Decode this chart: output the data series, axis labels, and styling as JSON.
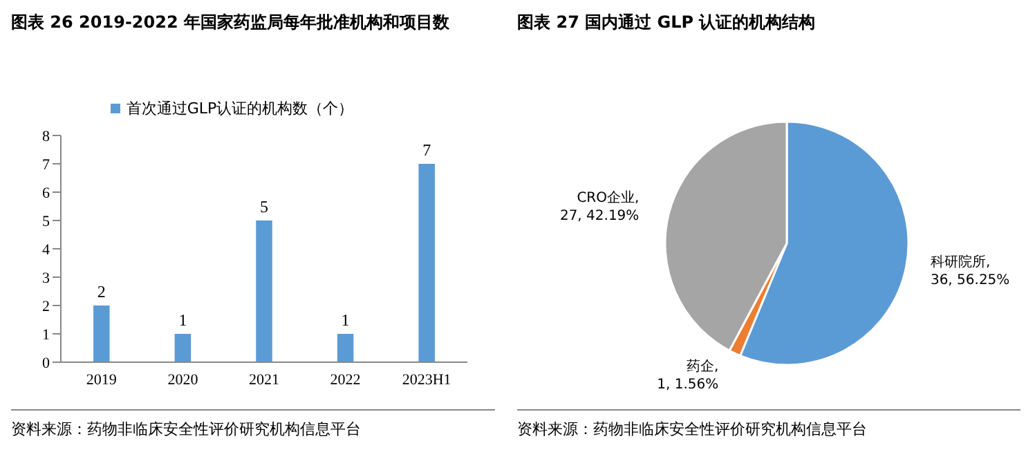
{
  "chart_data": [
    {
      "type": "bar",
      "title": "图表 26 2019-2022 年国家药监局每年批准机构和项目数",
      "categories": [
        "2019",
        "2020",
        "2021",
        "2022",
        "2023H1"
      ],
      "series": [
        {
          "name": "首次通过GLP认证的机构数（个）",
          "color": "#5b9bd5",
          "values": [
            2,
            1,
            5,
            1,
            7
          ]
        }
      ],
      "ylim": [
        0,
        8
      ],
      "yticks": [
        0,
        1,
        2,
        3,
        4,
        5,
        6,
        7,
        8
      ],
      "data_labels": true,
      "legend": "top",
      "annotations": [
        "资料来源：药物非临床安全性评价研究机构信息平台"
      ]
    },
    {
      "type": "pie",
      "title": "图表 27 国内通过 GLP 认证的机构结构",
      "categories": [
        "科研院所",
        "药企",
        "CRO企业"
      ],
      "values": [
        36,
        1,
        27
      ],
      "colors": [
        "#5b9bd5",
        "#ed7d31",
        "#a5a5a5"
      ],
      "value_labels": [
        ", 36, 56.25%",
        ", 1, 1.56%",
        ", 27, 42.19%"
      ],
      "annotations": [
        "资料来源：药物非临床安全性评价研究机构信息平台"
      ]
    }
  ]
}
